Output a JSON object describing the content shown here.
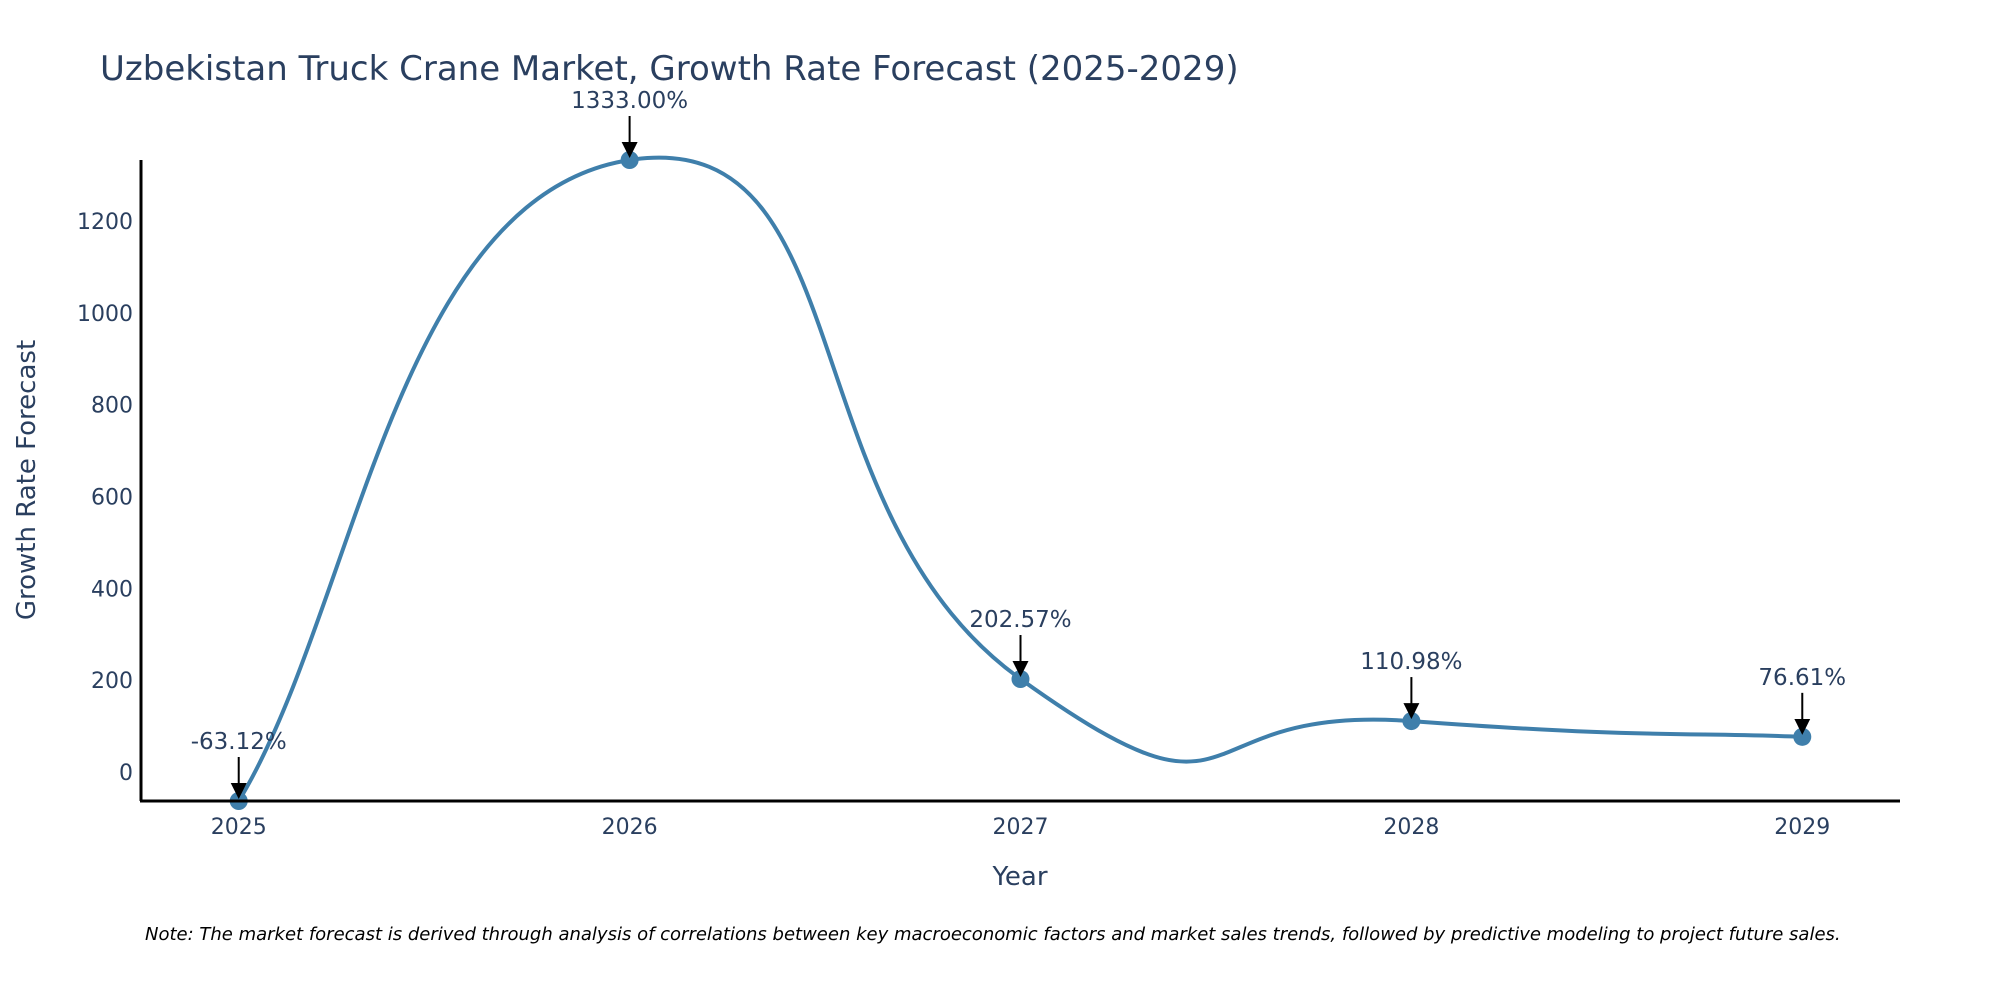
{
  "chart_data": {
    "type": "line",
    "title": "Uzbekistan Truck Crane Market, Growth Rate Forecast (2025-2029)",
    "xlabel": "Year",
    "ylabel": "Growth Rate Forecast",
    "categories": [
      "2025",
      "2026",
      "2027",
      "2028",
      "2029"
    ],
    "series": [
      {
        "name": "Growth Rate Forecast",
        "values": [
          -63.12,
          1333.0,
          202.57,
          110.98,
          76.61
        ],
        "labels": [
          "-63.12%",
          "1333.00%",
          "202.57%",
          "110.98%",
          "76.61%"
        ]
      }
    ],
    "yticks": [
      0,
      200,
      400,
      600,
      800,
      1000,
      1200
    ],
    "ylim": [
      -63.12,
      1333.0
    ],
    "xlim": [
      2024.75,
      2029.25
    ],
    "grid": false,
    "legend": "none",
    "colors": {
      "line": "#3f7fab",
      "marker": "#3f7fab",
      "axis": "#000000",
      "text": "#2a3f5f"
    },
    "note": "Note: The market forecast is derived through analysis of correlations between key macroeconomic factors and market sales trends, followed by predictive modeling to project future sales."
  }
}
